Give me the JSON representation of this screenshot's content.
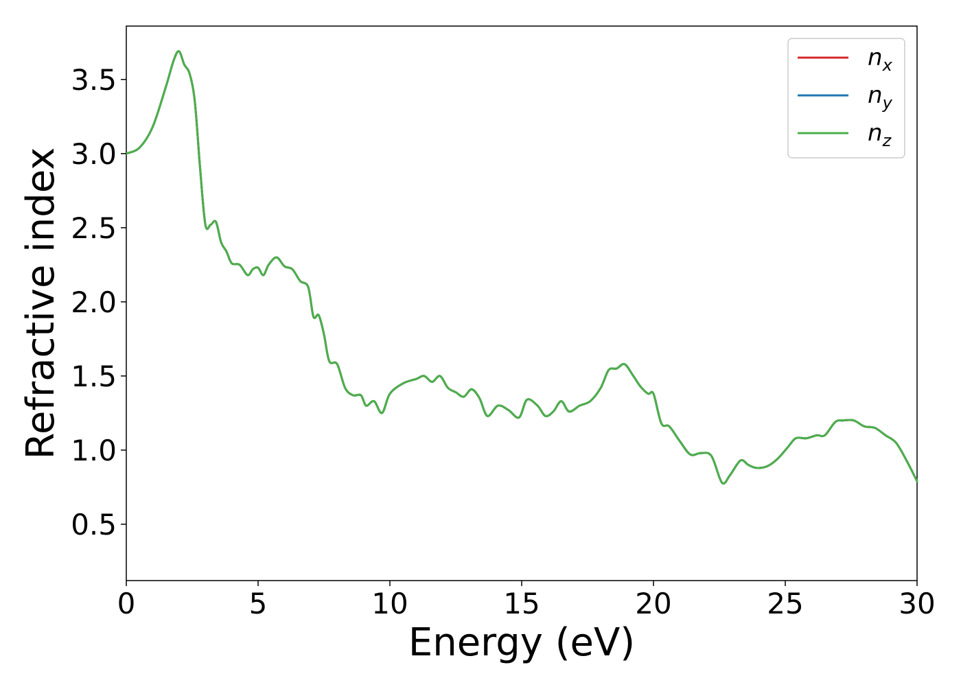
{
  "chart_data": {
    "type": "line",
    "title": "",
    "xlabel": "Energy (eV)",
    "ylabel": "Refractive index",
    "xlim": [
      0,
      30
    ],
    "ylim": [
      0.12,
      3.86
    ],
    "xticks": [
      0,
      5,
      10,
      15,
      20,
      25,
      30
    ],
    "xtick_labels": [
      "0",
      "5",
      "10",
      "15",
      "20",
      "25",
      "30"
    ],
    "yticks": [
      0.5,
      1.0,
      1.5,
      2.0,
      2.5,
      3.0,
      3.5
    ],
    "ytick_labels": [
      "0.5",
      "1.0",
      "1.5",
      "2.0",
      "2.5",
      "3.0",
      "3.5"
    ],
    "grid": false,
    "legend": "top-right",
    "x": [
      0,
      0.5,
      1.0,
      1.5,
      1.8,
      2.0,
      2.2,
      2.4,
      2.6,
      2.8,
      3.0,
      3.2,
      3.4,
      3.6,
      3.8,
      4.0,
      4.3,
      4.6,
      4.8,
      5.0,
      5.2,
      5.4,
      5.7,
      6.0,
      6.3,
      6.6,
      6.9,
      7.1,
      7.3,
      7.5,
      7.7,
      8.0,
      8.3,
      8.6,
      8.9,
      9.1,
      9.4,
      9.7,
      10.0,
      10.5,
      11.0,
      11.3,
      11.6,
      11.9,
      12.2,
      12.5,
      12.8,
      13.1,
      13.4,
      13.7,
      14.1,
      14.5,
      14.9,
      15.2,
      15.6,
      15.9,
      16.2,
      16.5,
      16.8,
      17.2,
      17.6,
      18.0,
      18.3,
      18.6,
      18.9,
      19.2,
      19.5,
      19.8,
      20.0,
      20.3,
      20.6,
      21.0,
      21.4,
      21.8,
      22.2,
      22.6,
      22.9,
      23.3,
      23.6,
      23.9,
      24.3,
      24.7,
      25.1,
      25.4,
      25.8,
      26.2,
      26.5,
      26.9,
      27.2,
      27.6,
      28.0,
      28.4,
      28.8,
      29.2,
      29.6,
      30.0
    ],
    "series": [
      {
        "name": "n_x",
        "color": "#d62728",
        "values": [
          3.0,
          3.04,
          3.18,
          3.45,
          3.63,
          3.69,
          3.6,
          3.54,
          3.35,
          2.9,
          2.52,
          2.52,
          2.54,
          2.4,
          2.34,
          2.26,
          2.25,
          2.18,
          2.22,
          2.23,
          2.18,
          2.25,
          2.3,
          2.24,
          2.22,
          2.14,
          2.1,
          1.9,
          1.91,
          1.78,
          1.6,
          1.58,
          1.42,
          1.37,
          1.37,
          1.3,
          1.33,
          1.25,
          1.38,
          1.45,
          1.48,
          1.5,
          1.46,
          1.5,
          1.42,
          1.39,
          1.36,
          1.41,
          1.35,
          1.23,
          1.3,
          1.27,
          1.22,
          1.34,
          1.3,
          1.23,
          1.26,
          1.33,
          1.26,
          1.3,
          1.33,
          1.42,
          1.54,
          1.55,
          1.58,
          1.51,
          1.43,
          1.38,
          1.38,
          1.18,
          1.16,
          1.06,
          0.97,
          0.98,
          0.96,
          0.78,
          0.83,
          0.93,
          0.9,
          0.88,
          0.89,
          0.94,
          1.02,
          1.08,
          1.08,
          1.1,
          1.1,
          1.19,
          1.2,
          1.2,
          1.16,
          1.15,
          1.1,
          1.05,
          0.93,
          0.79
        ]
      },
      {
        "name": "n_y",
        "color": "#1f77b4",
        "values": [
          3.0,
          3.04,
          3.18,
          3.45,
          3.63,
          3.69,
          3.6,
          3.54,
          3.35,
          2.9,
          2.52,
          2.52,
          2.54,
          2.4,
          2.34,
          2.26,
          2.25,
          2.18,
          2.22,
          2.23,
          2.18,
          2.25,
          2.3,
          2.24,
          2.22,
          2.14,
          2.1,
          1.9,
          1.91,
          1.78,
          1.6,
          1.58,
          1.42,
          1.37,
          1.37,
          1.3,
          1.33,
          1.25,
          1.38,
          1.45,
          1.48,
          1.5,
          1.46,
          1.5,
          1.42,
          1.39,
          1.36,
          1.41,
          1.35,
          1.23,
          1.3,
          1.27,
          1.22,
          1.34,
          1.3,
          1.23,
          1.26,
          1.33,
          1.26,
          1.3,
          1.33,
          1.42,
          1.54,
          1.55,
          1.58,
          1.51,
          1.43,
          1.38,
          1.38,
          1.18,
          1.16,
          1.06,
          0.97,
          0.98,
          0.96,
          0.78,
          0.83,
          0.93,
          0.9,
          0.88,
          0.89,
          0.94,
          1.02,
          1.08,
          1.08,
          1.1,
          1.1,
          1.19,
          1.2,
          1.2,
          1.16,
          1.15,
          1.1,
          1.05,
          0.93,
          0.79
        ]
      },
      {
        "name": "n_z",
        "color": "#4daf4a",
        "values": [
          3.0,
          3.04,
          3.18,
          3.45,
          3.63,
          3.69,
          3.6,
          3.54,
          3.35,
          2.9,
          2.52,
          2.52,
          2.54,
          2.4,
          2.34,
          2.26,
          2.25,
          2.18,
          2.22,
          2.23,
          2.18,
          2.25,
          2.3,
          2.24,
          2.22,
          2.14,
          2.1,
          1.9,
          1.91,
          1.78,
          1.6,
          1.58,
          1.42,
          1.37,
          1.37,
          1.3,
          1.33,
          1.25,
          1.38,
          1.45,
          1.48,
          1.5,
          1.46,
          1.5,
          1.42,
          1.39,
          1.36,
          1.41,
          1.35,
          1.23,
          1.3,
          1.27,
          1.22,
          1.34,
          1.3,
          1.23,
          1.26,
          1.33,
          1.26,
          1.3,
          1.33,
          1.42,
          1.54,
          1.55,
          1.58,
          1.51,
          1.43,
          1.38,
          1.38,
          1.18,
          1.16,
          1.06,
          0.97,
          0.98,
          0.96,
          0.78,
          0.83,
          0.93,
          0.9,
          0.88,
          0.89,
          0.94,
          1.02,
          1.08,
          1.08,
          1.1,
          1.1,
          1.19,
          1.2,
          1.2,
          1.16,
          1.15,
          1.1,
          1.05,
          0.93,
          0.79
        ]
      }
    ],
    "legend_entries": [
      {
        "base": "n",
        "sub": "x",
        "color": "#d62728"
      },
      {
        "base": "n",
        "sub": "y",
        "color": "#1f77b4"
      },
      {
        "base": "n",
        "sub": "z",
        "color": "#4daf4a"
      }
    ]
  }
}
